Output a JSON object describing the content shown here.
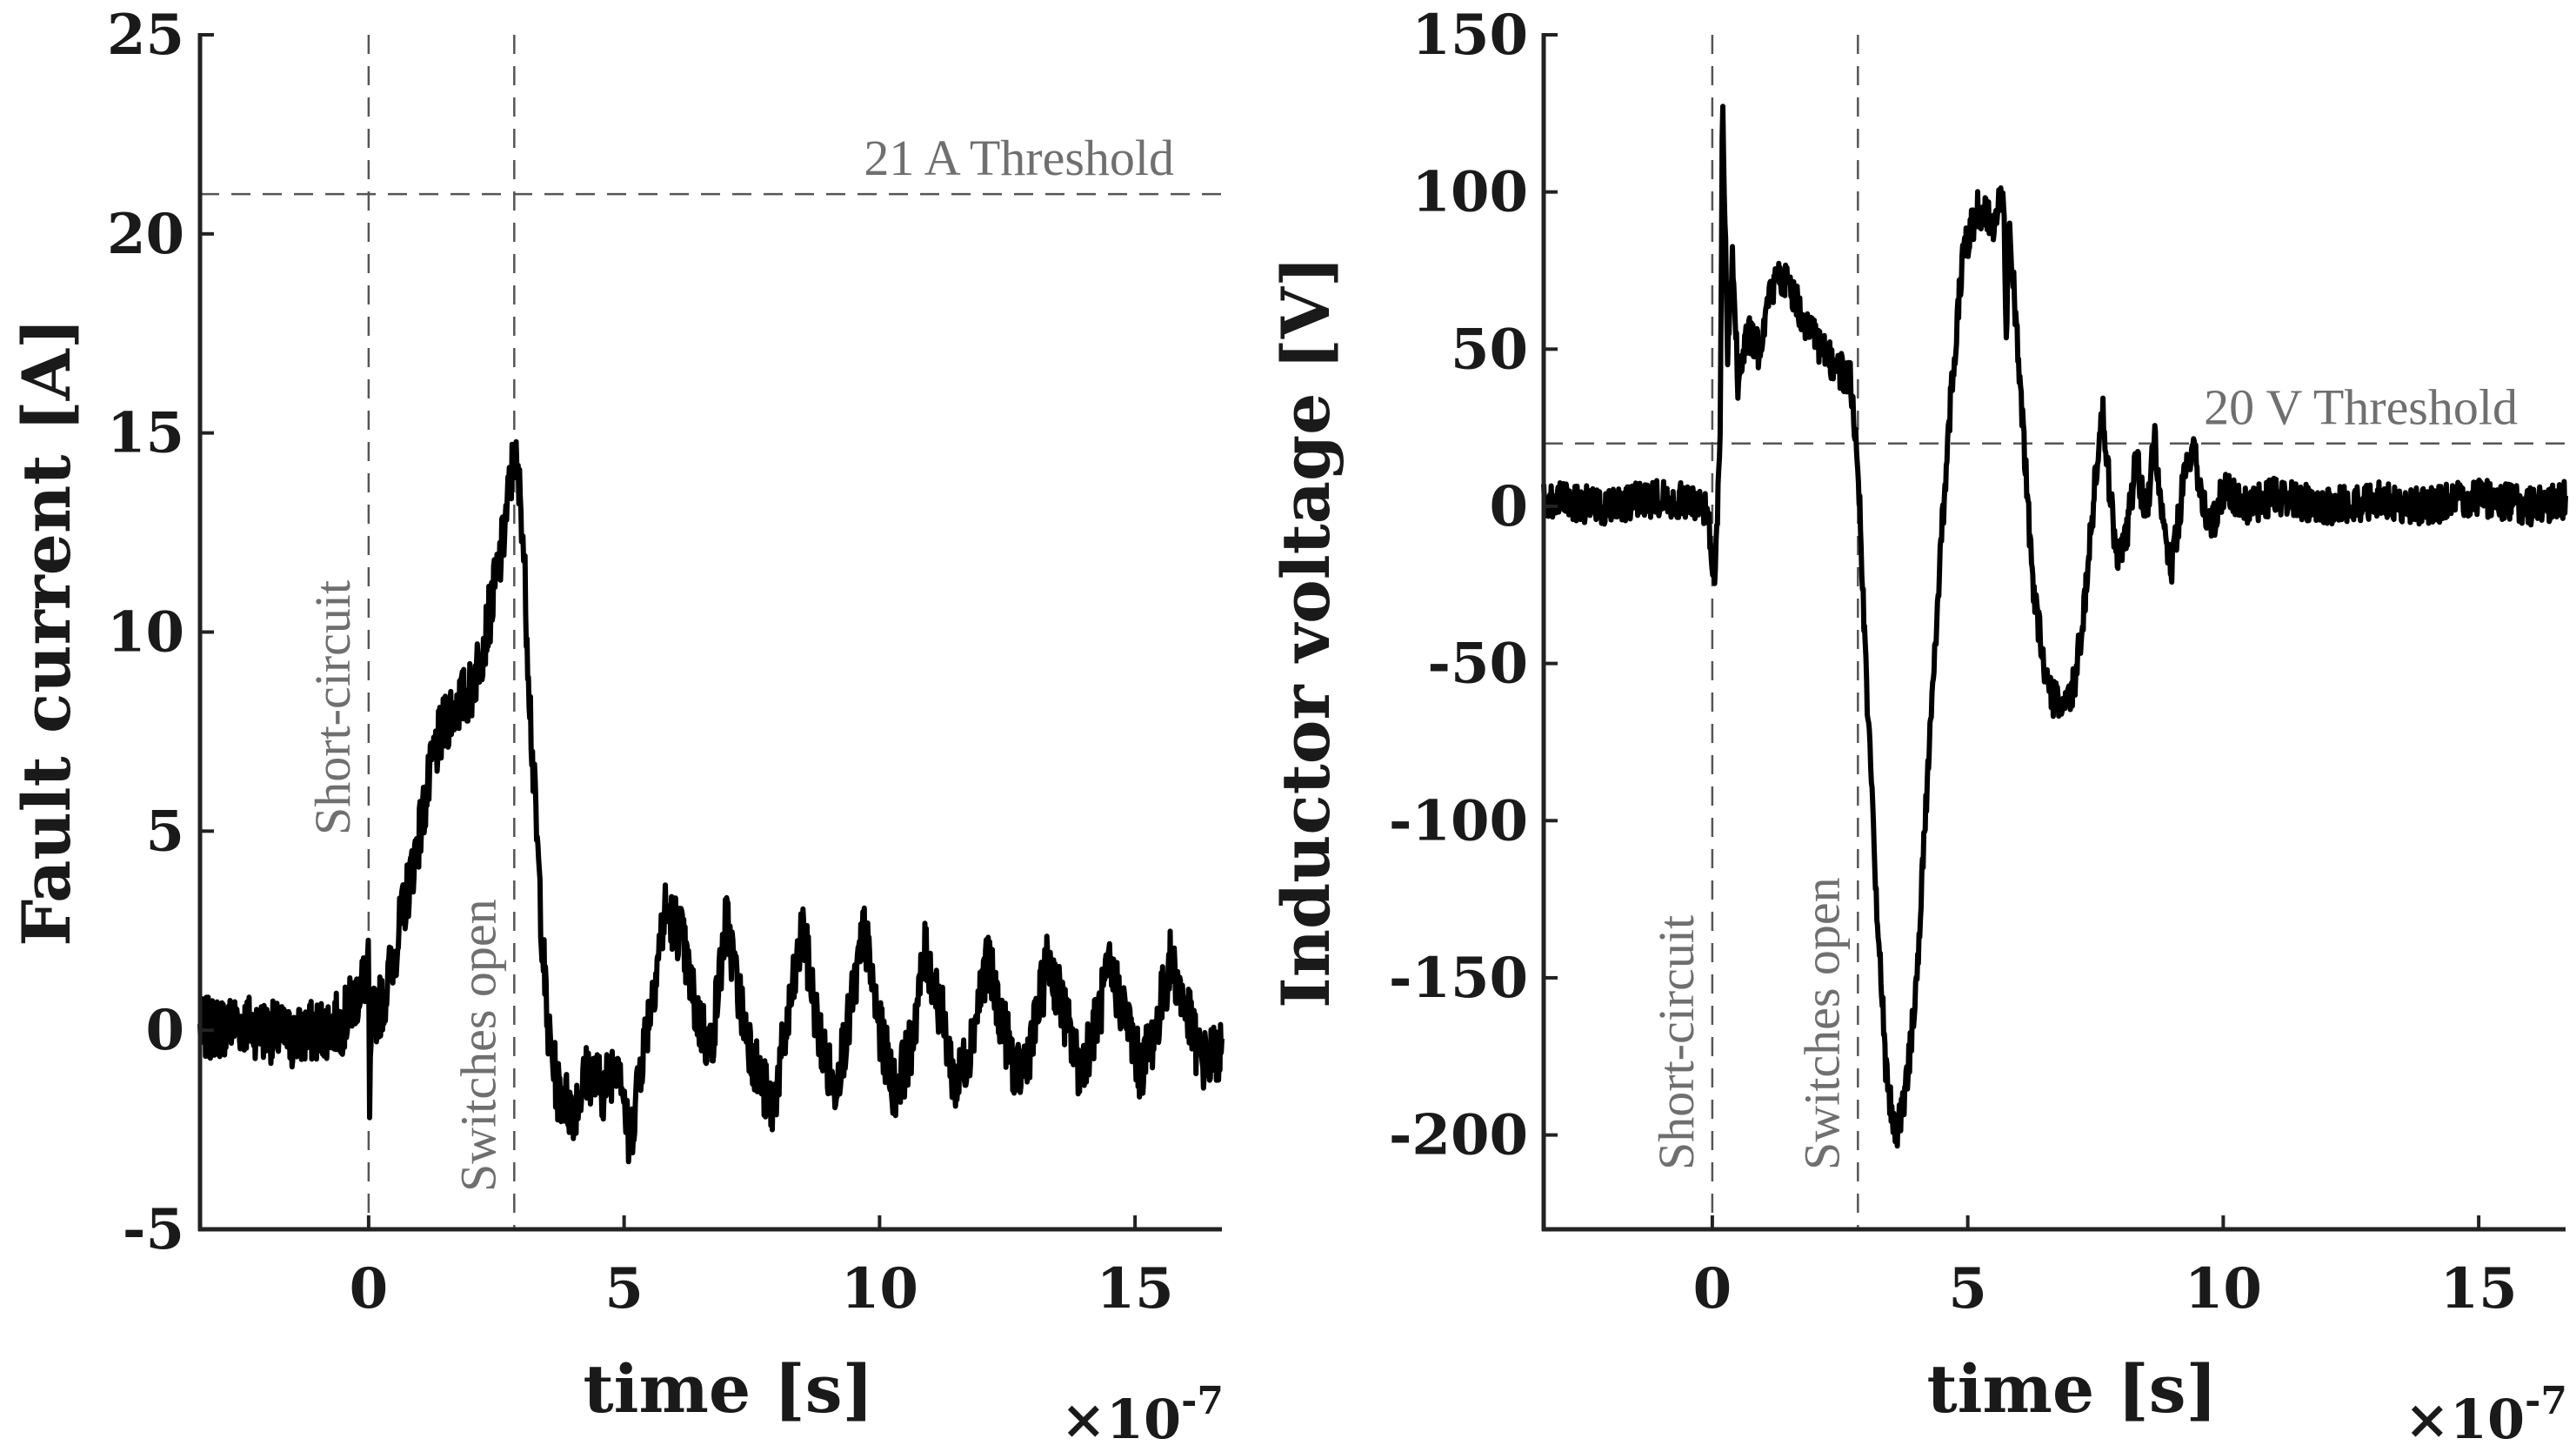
{
  "chart_data": [
    {
      "type": "line",
      "title": "",
      "xlabel": "time [s]",
      "ylabel": "Fault current [A]",
      "x_multiplier_label": "×10",
      "x_multiplier_exp": "-7",
      "xlim": [
        -3.3,
        16.7
      ],
      "ylim": [
        -5,
        25
      ],
      "xticks": [
        0,
        5,
        10,
        15
      ],
      "xtick_labels": [
        "0",
        "5",
        "10",
        "15"
      ],
      "yticks": [
        -5,
        0,
        5,
        10,
        15,
        20,
        25
      ],
      "ytick_labels": [
        "-5",
        "0",
        "5",
        "10",
        "15",
        "20",
        "25"
      ],
      "thresholds": [
        {
          "value": 21,
          "label": "21 A Threshold"
        }
      ],
      "markers": [
        {
          "x": 0,
          "label": "Short-circuit"
        },
        {
          "x": 2.85,
          "label": "Switches open"
        }
      ],
      "series": [
        {
          "name": "Fault current",
          "x": [
            -3.3,
            -2.5,
            -1.5,
            -0.5,
            0,
            0.02,
            0.05,
            0.3,
            0.6,
            1.0,
            1.3,
            1.6,
            2.0,
            2.3,
            2.6,
            2.85,
            3.0,
            3.2,
            3.5,
            3.7,
            4.0,
            4.3,
            4.6,
            4.9,
            5.1,
            5.3,
            5.5,
            5.8,
            6.1,
            6.4,
            6.7,
            7.0,
            7.3,
            7.6,
            7.9,
            8.2,
            8.5,
            8.8,
            9.1,
            9.4,
            9.7,
            10.0,
            10.3,
            10.6,
            10.9,
            11.2,
            11.5,
            11.8,
            12.1,
            12.4,
            12.7,
            13.0,
            13.3,
            13.6,
            13.9,
            14.2,
            14.5,
            14.8,
            15.1,
            15.4,
            15.7,
            16.0,
            16.3,
            16.7
          ],
          "y": [
            0,
            0.2,
            -0.2,
            0.2,
            1.5,
            -2.5,
            0.2,
            0.8,
            2.5,
            5,
            7,
            8,
            8.5,
            10,
            12,
            14.5,
            13,
            7,
            0,
            -1.5,
            -2,
            -1,
            -1.5,
            -0.5,
            -3,
            -1,
            0.5,
            3,
            2.5,
            0.5,
            -0.5,
            2.8,
            0.5,
            -1,
            -2,
            0.2,
            2.5,
            0,
            -1.5,
            0.2,
            2.5,
            0,
            -1.5,
            -0.5,
            2,
            0.5,
            -1.5,
            -0.2,
            1.8,
            0.2,
            -1.2,
            -0.2,
            1.8,
            0.5,
            -1,
            0,
            1.5,
            0.5,
            -1,
            0,
            1.8,
            0.5,
            -0.8,
            -0.5
          ],
          "noise_amplitude": 0.8
        }
      ]
    },
    {
      "type": "line",
      "title": "",
      "xlabel": "time [s]",
      "ylabel": "Inductor voltage [V]",
      "x_multiplier_label": "×10",
      "x_multiplier_exp": "-7",
      "xlim": [
        -3.3,
        16.7
      ],
      "ylim": [
        -230,
        150
      ],
      "xticks": [
        0,
        5,
        10,
        15
      ],
      "xtick_labels": [
        "0",
        "5",
        "10",
        "15"
      ],
      "yticks": [
        -200,
        -150,
        -100,
        -50,
        0,
        50,
        100,
        150
      ],
      "ytick_labels": [
        "-200",
        "-150",
        "-100",
        "-50",
        "0",
        "50",
        "100",
        "150"
      ],
      "thresholds": [
        {
          "value": 20,
          "label": "20 V Threshold"
        }
      ],
      "markers": [
        {
          "x": 0,
          "label": "Short-circuit"
        },
        {
          "x": 2.85,
          "label": "Switches open"
        }
      ],
      "series": [
        {
          "name": "Inductor voltage",
          "x": [
            -3.3,
            -2.0,
            -1.0,
            -0.1,
            0.05,
            0.15,
            0.2,
            0.3,
            0.4,
            0.5,
            0.7,
            0.9,
            1.1,
            1.3,
            1.5,
            1.8,
            2.1,
            2.4,
            2.7,
            2.85,
            3.0,
            3.2,
            3.4,
            3.6,
            3.8,
            4.0,
            4.3,
            4.6,
            4.9,
            5.2,
            5.5,
            5.7,
            5.75,
            5.8,
            5.9,
            6.1,
            6.3,
            6.6,
            6.9,
            7.1,
            7.3,
            7.5,
            7.65,
            7.75,
            7.9,
            8.1,
            8.3,
            8.5,
            8.65,
            8.8,
            9.0,
            9.2,
            9.4,
            9.6,
            9.8,
            10.0,
            10.5,
            11,
            12,
            13,
            14,
            15,
            16,
            16.7
          ],
          "y": [
            2,
            0,
            3,
            0,
            -25,
            20,
            130,
            50,
            80,
            40,
            55,
            50,
            65,
            75,
            70,
            60,
            50,
            45,
            40,
            15,
            -50,
            -120,
            -180,
            -200,
            -185,
            -150,
            -60,
            20,
            80,
            95,
            90,
            100,
            50,
            90,
            70,
            20,
            -30,
            -60,
            -65,
            -55,
            -30,
            10,
            30,
            10,
            -15,
            -10,
            15,
            -5,
            25,
            -5,
            -20,
            5,
            20,
            0,
            -5,
            5,
            0,
            3,
            0,
            2,
            0,
            3,
            0,
            2
          ],
          "noise_amplitude": 6
        }
      ]
    }
  ]
}
